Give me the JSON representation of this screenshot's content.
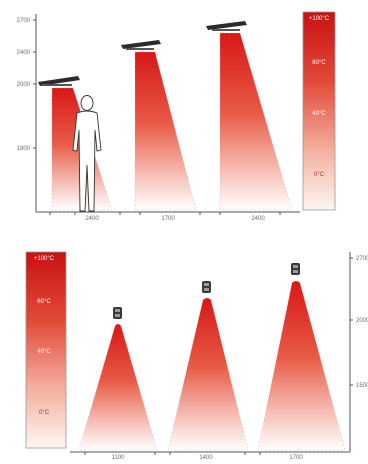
{
  "top_panel": {
    "y_ticks": [
      "2700",
      "2400",
      "2000",
      "1800"
    ],
    "x_ticks": [
      "2400",
      "1700",
      "2400"
    ],
    "legend": {
      "top": "+100°C",
      "upper": "60°C",
      "middle": "40°C",
      "bottom": "0°C"
    }
  },
  "bottom_panel": {
    "y_ticks": [
      "2700",
      "2000",
      "1500"
    ],
    "x_ticks": [
      "1100",
      "1400",
      "1700"
    ],
    "legend": {
      "top": "+100°C",
      "upper": "60°C",
      "middle": "40°C",
      "bottom": "0°C"
    }
  },
  "colors": {
    "heat_core": "#d81e1e",
    "heat_fade": "#ffffff",
    "lamp": "#2b2b2b",
    "axis": "#555555"
  },
  "icons": {
    "heater_top": "infrared-heater-icon",
    "heater_bottom": "infrared-lamp-icon",
    "person": "person-silhouette-icon"
  }
}
